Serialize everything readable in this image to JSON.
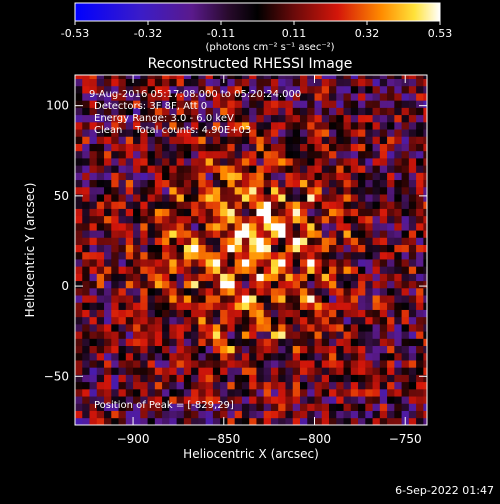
{
  "colorbar": {
    "tick_labels": [
      "-0.53",
      "-0.32",
      "-0.11",
      "0.11",
      "0.32",
      "0.53"
    ],
    "vmin": -0.53,
    "vmax": 0.53,
    "units_label": "(photons cm⁻² s⁻¹ asec⁻²)",
    "colormap": "sunset-diverging: blue-purple-black-red-orange-yellow-white"
  },
  "annotations": {
    "time_range": "9-Aug-2016 05:17:08.000 to 05:20:24.000",
    "detectors": "Detectors: 3F 8F, Att 0",
    "energy_range": "Energy Range: 3.0 - 6.0 keV",
    "clean_counts": "Clean    Total counts: 4.90E+03",
    "peak_position": "Position of Peak = [-829,29]"
  },
  "footer": {
    "timestamp": "6-Sep-2022 01:47"
  },
  "chart_data": {
    "type": "heatmap",
    "title": "Reconstructed RHESSI Image",
    "xlabel": "Heliocentric X (arcsec)",
    "ylabel": "Heliocentric Y (arcsec)",
    "xlim": [
      -932,
      -738
    ],
    "ylim": [
      -77,
      117
    ],
    "xticks": [
      -900,
      -850,
      -800,
      -750
    ],
    "yticks": [
      -50,
      0,
      50,
      100
    ],
    "grid": false,
    "pixel_size_arcsec": 4,
    "peak": [
      -829,
      29
    ],
    "value_range": [
      -0.53,
      0.53
    ]
  }
}
